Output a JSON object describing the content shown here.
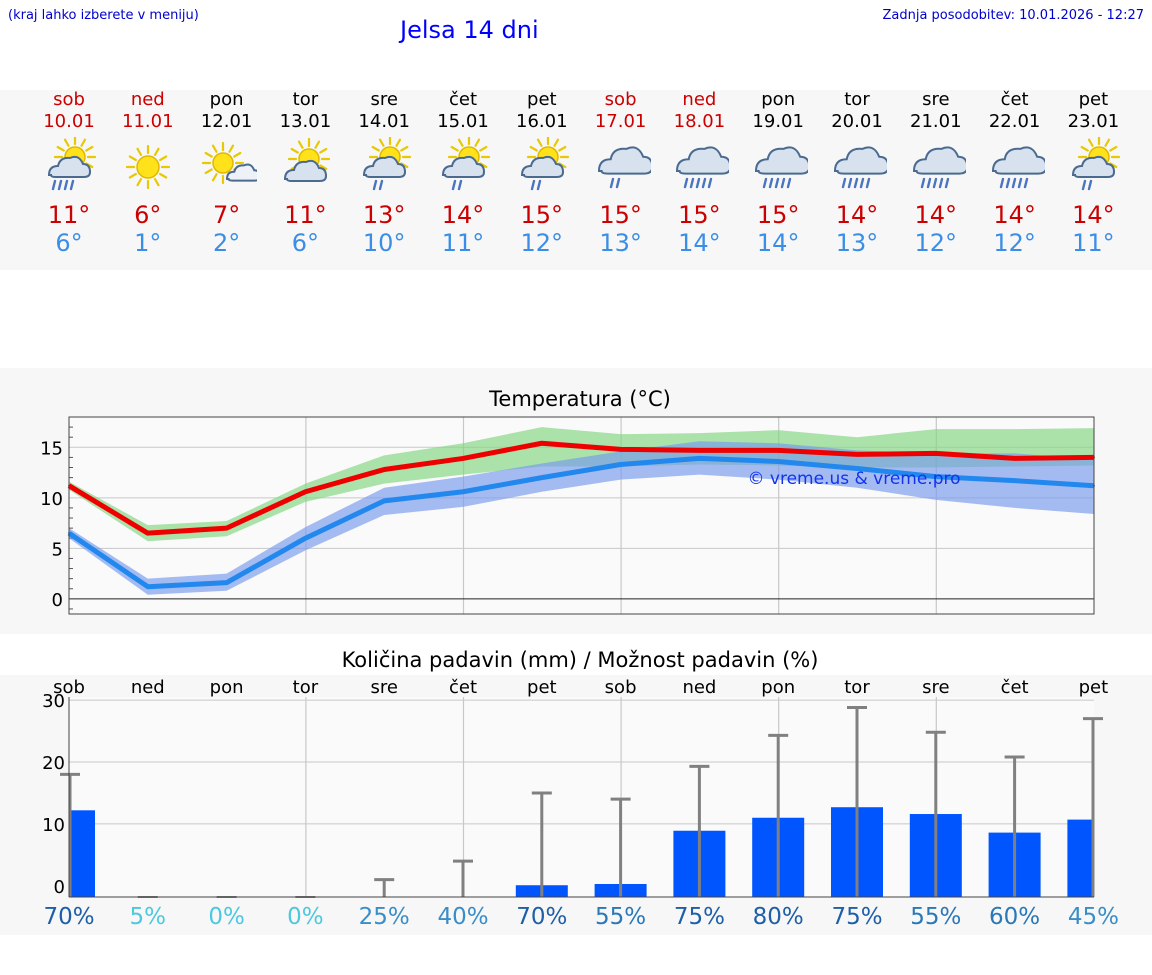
{
  "header": {
    "hint": "(kraj lahko izberete v meniju)",
    "title": "Jelsa 14 dni",
    "updated": "Zadnja posodobitev: 10.01.2026 - 12:27"
  },
  "days": [
    {
      "name": "sob",
      "date": "10.01",
      "weekend": true,
      "icon": "sun-cloud-rain-icon",
      "max": "11°",
      "min": "6°"
    },
    {
      "name": "ned",
      "date": "11.01",
      "weekend": true,
      "icon": "sun-icon",
      "max": "6°",
      "min": "1°"
    },
    {
      "name": "pon",
      "date": "12.01",
      "weekend": false,
      "icon": "sun-small-cloud-icon",
      "max": "7°",
      "min": "2°"
    },
    {
      "name": "tor",
      "date": "13.01",
      "weekend": false,
      "icon": "sun-cloud-icon",
      "max": "11°",
      "min": "6°"
    },
    {
      "name": "sre",
      "date": "14.01",
      "weekend": false,
      "icon": "sun-cloud-light-rain-icon",
      "max": "13°",
      "min": "10°"
    },
    {
      "name": "čet",
      "date": "15.01",
      "weekend": false,
      "icon": "sun-cloud-light-rain-icon",
      "max": "14°",
      "min": "11°"
    },
    {
      "name": "pet",
      "date": "16.01",
      "weekend": false,
      "icon": "sun-cloud-light-rain-icon",
      "max": "15°",
      "min": "12°"
    },
    {
      "name": "sob",
      "date": "17.01",
      "weekend": true,
      "icon": "cloud-rain-icon",
      "max": "15°",
      "min": "13°"
    },
    {
      "name": "ned",
      "date": "18.01",
      "weekend": true,
      "icon": "cloud-heavy-rain-icon",
      "max": "15°",
      "min": "14°"
    },
    {
      "name": "pon",
      "date": "19.01",
      "weekend": false,
      "icon": "cloud-heavy-rain-icon",
      "max": "15°",
      "min": "14°"
    },
    {
      "name": "tor",
      "date": "20.01",
      "weekend": false,
      "icon": "cloud-heavy-rain-icon",
      "max": "14°",
      "min": "13°"
    },
    {
      "name": "sre",
      "date": "21.01",
      "weekend": false,
      "icon": "cloud-heavy-rain-icon",
      "max": "14°",
      "min": "12°"
    },
    {
      "name": "čet",
      "date": "22.01",
      "weekend": false,
      "icon": "cloud-heavy-rain-icon",
      "max": "14°",
      "min": "12°"
    },
    {
      "name": "pet",
      "date": "23.01",
      "weekend": false,
      "icon": "sun-cloud-light-rain-icon",
      "max": "14°",
      "min": "11°"
    }
  ],
  "colors": {
    "max_line": "#ee0000",
    "max_band": "#7fd67f",
    "min_line": "#2288ee",
    "min_band": "#7799ee",
    "bar": "#0055ff",
    "whisker": "#808080",
    "weekend": "#cc0000"
  },
  "chart_data": [
    {
      "type": "line",
      "title": "Temperatura (°C)",
      "watermark": "© vreme.us & vreme.pro",
      "x": [
        0,
        1,
        2,
        3,
        4,
        5,
        6,
        7,
        8,
        9,
        10,
        11,
        12,
        13
      ],
      "ylim": [
        -1.5,
        18
      ],
      "yticks": [
        0,
        5,
        10,
        15
      ],
      "series": [
        {
          "name": "max",
          "values": [
            11.2,
            6.5,
            7.0,
            10.6,
            12.8,
            13.9,
            15.4,
            14.8,
            14.7,
            14.7,
            14.3,
            14.4,
            13.9,
            14.0
          ],
          "band_low": [
            10.8,
            5.7,
            6.2,
            9.6,
            11.4,
            12.3,
            13.1,
            13.1,
            13.3,
            13.2,
            13.0,
            13.0,
            13.1,
            13.2
          ],
          "band_high": [
            11.6,
            7.3,
            7.7,
            11.4,
            14.2,
            15.4,
            17.0,
            16.3,
            16.4,
            16.7,
            16.0,
            16.8,
            16.8,
            16.9
          ]
        },
        {
          "name": "min",
          "values": [
            6.5,
            1.2,
            1.6,
            6.0,
            9.7,
            10.6,
            12.0,
            13.3,
            13.9,
            13.6,
            12.9,
            12.1,
            11.7,
            11.2
          ],
          "band_low": [
            6.0,
            0.4,
            0.8,
            4.8,
            8.3,
            9.1,
            10.6,
            11.8,
            12.3,
            11.8,
            11.0,
            9.8,
            9.0,
            8.4
          ],
          "band_high": [
            7.0,
            2.0,
            2.5,
            7.1,
            11.0,
            12.1,
            13.4,
            14.6,
            15.6,
            15.4,
            14.7,
            14.4,
            14.4,
            13.8
          ]
        }
      ]
    },
    {
      "type": "bar",
      "title": "Količina padavin (mm) / Možnost padavin (%)",
      "categories": [
        "sob",
        "ned",
        "pon",
        "tor",
        "sre",
        "čet",
        "pet",
        "sob",
        "ned",
        "pon",
        "tor",
        "sre",
        "čet",
        "pet"
      ],
      "values": [
        12.2,
        0,
        0,
        0,
        0,
        0,
        0.1,
        0.3,
        8.9,
        11.0,
        12.7,
        11.6,
        8.6,
        10.7
      ],
      "whisker_high": [
        18.0,
        0,
        0,
        0,
        1.0,
        4.0,
        15.0,
        14.0,
        19.3,
        24.3,
        28.8,
        24.8,
        20.8,
        27.0
      ],
      "ylim": [
        -1.8,
        30.5
      ],
      "yticks": [
        0,
        10,
        20,
        30
      ],
      "chance": [
        "70%",
        "5%",
        "0%",
        "0%",
        "25%",
        "40%",
        "70%",
        "55%",
        "75%",
        "80%",
        "75%",
        "55%",
        "60%",
        "45%"
      ],
      "chance_colors": [
        "#1e5fa8",
        "#4ec8e0",
        "#4ec8e0",
        "#4ec8e0",
        "#3a8ec8",
        "#3a8ec8",
        "#1e5fa8",
        "#2a78b8",
        "#1e5fa8",
        "#1e5fa8",
        "#1e5fa8",
        "#2a78b8",
        "#2a78b8",
        "#3a8ec8"
      ]
    }
  ]
}
